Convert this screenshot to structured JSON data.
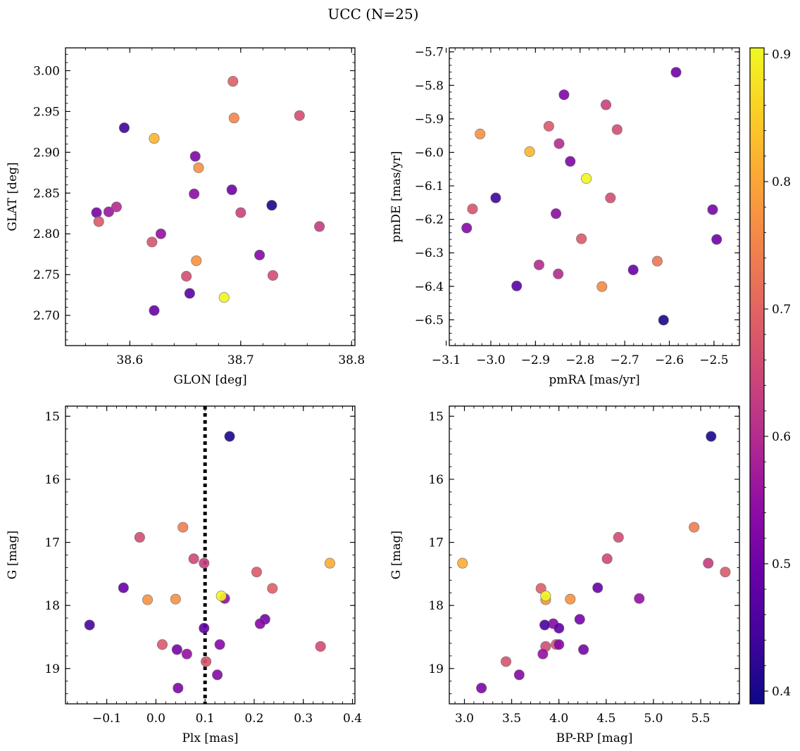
{
  "figure": {
    "suptitle": "UCC (N=25)",
    "colorbar": {
      "colormap": "plasma",
      "range": [
        0.39,
        0.905
      ],
      "ticks": [
        0.4,
        0.5,
        0.6,
        0.7,
        0.8,
        0.9
      ],
      "tick_labels": [
        "0.4",
        "0.5",
        "0.6",
        "0.7",
        "0.8",
        "0.9"
      ]
    }
  },
  "chart_data": [
    {
      "type": "scatter",
      "title": "",
      "xlabel": "GLON [deg]",
      "ylabel": "GLAT [deg]",
      "xlim": [
        38.542,
        38.803
      ],
      "ylim": [
        2.663,
        3.028
      ],
      "invert_y": false,
      "x_ticks": [
        38.6,
        38.7,
        38.8
      ],
      "x_tick_labels": [
        "38.6",
        "38.7",
        "38.8"
      ],
      "y_ticks": [
        2.7,
        2.75,
        2.8,
        2.85,
        2.9,
        2.95,
        3.0
      ],
      "y_tick_labels": [
        "2.70",
        "2.75",
        "2.80",
        "2.85",
        "2.90",
        "2.95",
        "3.00"
      ],
      "points": [
        {
          "x": 38.595,
          "y": 2.93,
          "c": 0.44
        },
        {
          "x": 38.622,
          "y": 2.917,
          "c": 0.82
        },
        {
          "x": 38.693,
          "y": 2.987,
          "c": 0.69
        },
        {
          "x": 38.694,
          "y": 2.942,
          "c": 0.75
        },
        {
          "x": 38.753,
          "y": 2.945,
          "c": 0.66
        },
        {
          "x": 38.659,
          "y": 2.895,
          "c": 0.52
        },
        {
          "x": 38.662,
          "y": 2.881,
          "c": 0.77
        },
        {
          "x": 38.658,
          "y": 2.849,
          "c": 0.54
        },
        {
          "x": 38.692,
          "y": 2.854,
          "c": 0.5
        },
        {
          "x": 38.728,
          "y": 2.835,
          "c": 0.4
        },
        {
          "x": 38.7,
          "y": 2.826,
          "c": 0.64
        },
        {
          "x": 38.57,
          "y": 2.826,
          "c": 0.51
        },
        {
          "x": 38.581,
          "y": 2.827,
          "c": 0.56
        },
        {
          "x": 38.588,
          "y": 2.833,
          "c": 0.6
        },
        {
          "x": 38.572,
          "y": 2.815,
          "c": 0.68
        },
        {
          "x": 38.628,
          "y": 2.8,
          "c": 0.55
        },
        {
          "x": 38.62,
          "y": 2.79,
          "c": 0.67
        },
        {
          "x": 38.771,
          "y": 2.809,
          "c": 0.63
        },
        {
          "x": 38.717,
          "y": 2.774,
          "c": 0.53
        },
        {
          "x": 38.66,
          "y": 2.767,
          "c": 0.77
        },
        {
          "x": 38.651,
          "y": 2.748,
          "c": 0.66
        },
        {
          "x": 38.729,
          "y": 2.749,
          "c": 0.66
        },
        {
          "x": 38.654,
          "y": 2.727,
          "c": 0.47
        },
        {
          "x": 38.685,
          "y": 2.722,
          "c": 0.9
        },
        {
          "x": 38.622,
          "y": 2.706,
          "c": 0.49
        }
      ]
    },
    {
      "type": "scatter",
      "title": "",
      "xlabel": "pmRA [mas/yr]",
      "ylabel": "pmDE [mas/yr]",
      "xlim": [
        -3.093,
        -2.443
      ],
      "ylim": [
        -6.577,
        -5.688
      ],
      "invert_y": false,
      "x_ticks": [
        -3.1,
        -3.0,
        -2.9,
        -2.8,
        -2.7,
        -2.6,
        -2.5
      ],
      "x_tick_labels": [
        "−3.1",
        "−3.0",
        "−2.9",
        "−2.8",
        "−2.7",
        "−2.6",
        "−2.5"
      ],
      "y_ticks": [
        -6.5,
        -6.4,
        -6.3,
        -6.2,
        -6.1,
        -6.0,
        -5.9,
        -5.8,
        -5.7
      ],
      "y_tick_labels": [
        "−6.5",
        "−6.4",
        "−6.3",
        "−6.2",
        "−6.1",
        "−6.0",
        "−5.9",
        "−5.8",
        "−5.7"
      ],
      "points": [
        {
          "x": -2.585,
          "y": -5.761,
          "c": 0.5
        },
        {
          "x": -2.836,
          "y": -5.828,
          "c": 0.52
        },
        {
          "x": -2.742,
          "y": -5.858,
          "c": 0.64
        },
        {
          "x": -2.87,
          "y": -5.922,
          "c": 0.68
        },
        {
          "x": -2.717,
          "y": -5.932,
          "c": 0.66
        },
        {
          "x": -3.024,
          "y": -5.945,
          "c": 0.77
        },
        {
          "x": -2.847,
          "y": -5.974,
          "c": 0.6
        },
        {
          "x": -2.913,
          "y": -5.998,
          "c": 0.82
        },
        {
          "x": -2.822,
          "y": -6.027,
          "c": 0.52
        },
        {
          "x": -2.786,
          "y": -6.078,
          "c": 0.9
        },
        {
          "x": -2.989,
          "y": -6.136,
          "c": 0.44
        },
        {
          "x": -2.732,
          "y": -6.136,
          "c": 0.66
        },
        {
          "x": -3.041,
          "y": -6.169,
          "c": 0.67
        },
        {
          "x": -2.503,
          "y": -6.171,
          "c": 0.51
        },
        {
          "x": -2.854,
          "y": -6.183,
          "c": 0.54
        },
        {
          "x": -3.054,
          "y": -6.226,
          "c": 0.53
        },
        {
          "x": -2.797,
          "y": -6.258,
          "c": 0.68
        },
        {
          "x": -2.494,
          "y": -6.26,
          "c": 0.5
        },
        {
          "x": -2.627,
          "y": -6.325,
          "c": 0.73
        },
        {
          "x": -2.892,
          "y": -6.336,
          "c": 0.6
        },
        {
          "x": -2.681,
          "y": -6.351,
          "c": 0.49
        },
        {
          "x": -2.849,
          "y": -6.363,
          "c": 0.6
        },
        {
          "x": -2.751,
          "y": -6.401,
          "c": 0.76
        },
        {
          "x": -2.942,
          "y": -6.399,
          "c": 0.47
        },
        {
          "x": -2.613,
          "y": -6.501,
          "c": 0.4
        }
      ]
    },
    {
      "type": "scatter",
      "title": "",
      "xlabel": "Plx [mas]",
      "ylabel": "G [mag]",
      "xlim": [
        -0.184,
        0.405
      ],
      "ylim": [
        14.84,
        19.56
      ],
      "invert_y": true,
      "vline": {
        "x": 0.1,
        "style": "dotted",
        "color": "#000000"
      },
      "x_ticks": [
        -0.1,
        0.0,
        0.1,
        0.2,
        0.3,
        0.4
      ],
      "x_tick_labels": [
        "−0.1",
        "0.0",
        "0.1",
        "0.2",
        "0.3",
        "0.4"
      ],
      "y_ticks": [
        15,
        16,
        17,
        18,
        19
      ],
      "y_tick_labels": [
        "15",
        "16",
        "17",
        "18",
        "19"
      ],
      "points": [
        {
          "x": 0.15,
          "y": 15.32,
          "c": 0.4
        },
        {
          "x": 0.055,
          "y": 16.76,
          "c": 0.74
        },
        {
          "x": -0.033,
          "y": 16.92,
          "c": 0.66
        },
        {
          "x": 0.077,
          "y": 17.26,
          "c": 0.65
        },
        {
          "x": 0.098,
          "y": 17.33,
          "c": 0.63
        },
        {
          "x": 0.354,
          "y": 17.33,
          "c": 0.81
        },
        {
          "x": 0.205,
          "y": 17.47,
          "c": 0.68
        },
        {
          "x": -0.066,
          "y": 17.72,
          "c": 0.49
        },
        {
          "x": 0.237,
          "y": 17.73,
          "c": 0.69
        },
        {
          "x": 0.14,
          "y": 17.89,
          "c": 0.55
        },
        {
          "x": 0.133,
          "y": 17.85,
          "c": 0.9
        },
        {
          "x": -0.017,
          "y": 17.91,
          "c": 0.77
        },
        {
          "x": 0.04,
          "y": 17.9,
          "c": 0.77
        },
        {
          "x": 0.222,
          "y": 18.22,
          "c": 0.51
        },
        {
          "x": 0.212,
          "y": 18.29,
          "c": 0.53
        },
        {
          "x": -0.135,
          "y": 18.31,
          "c": 0.45
        },
        {
          "x": 0.098,
          "y": 18.36,
          "c": 0.48
        },
        {
          "x": 0.013,
          "y": 18.62,
          "c": 0.68
        },
        {
          "x": 0.13,
          "y": 18.62,
          "c": 0.53
        },
        {
          "x": 0.335,
          "y": 18.65,
          "c": 0.66
        },
        {
          "x": 0.043,
          "y": 18.7,
          "c": 0.51
        },
        {
          "x": 0.063,
          "y": 18.77,
          "c": 0.55
        },
        {
          "x": 0.102,
          "y": 18.89,
          "c": 0.67
        },
        {
          "x": 0.125,
          "y": 19.1,
          "c": 0.53
        },
        {
          "x": 0.045,
          "y": 19.31,
          "c": 0.52
        }
      ]
    },
    {
      "type": "scatter",
      "title": "",
      "xlabel": "BP-RP [mag]",
      "ylabel": "G [mag]",
      "xlim": [
        2.84,
        5.91
      ],
      "ylim": [
        14.84,
        19.56
      ],
      "invert_y": true,
      "x_ticks": [
        3.0,
        3.5,
        4.0,
        4.5,
        5.0,
        5.5
      ],
      "x_tick_labels": [
        "3.0",
        "3.5",
        "4.0",
        "4.5",
        "5.0",
        "5.5"
      ],
      "y_ticks": [
        15,
        16,
        17,
        18,
        19
      ],
      "y_tick_labels": [
        "15",
        "16",
        "17",
        "18",
        "19"
      ],
      "points": [
        {
          "x": 5.61,
          "y": 15.32,
          "c": 0.4
        },
        {
          "x": 5.43,
          "y": 16.76,
          "c": 0.74
        },
        {
          "x": 4.63,
          "y": 16.92,
          "c": 0.66
        },
        {
          "x": 4.51,
          "y": 17.26,
          "c": 0.65
        },
        {
          "x": 5.58,
          "y": 17.33,
          "c": 0.63
        },
        {
          "x": 2.98,
          "y": 17.33,
          "c": 0.81
        },
        {
          "x": 5.76,
          "y": 17.47,
          "c": 0.68
        },
        {
          "x": 4.41,
          "y": 17.72,
          "c": 0.49
        },
        {
          "x": 3.81,
          "y": 17.73,
          "c": 0.69
        },
        {
          "x": 4.85,
          "y": 17.89,
          "c": 0.55
        },
        {
          "x": 3.86,
          "y": 17.91,
          "c": 0.77
        },
        {
          "x": 3.86,
          "y": 17.85,
          "c": 0.9
        },
        {
          "x": 4.12,
          "y": 17.9,
          "c": 0.77
        },
        {
          "x": 4.22,
          "y": 18.22,
          "c": 0.51
        },
        {
          "x": 3.94,
          "y": 18.29,
          "c": 0.53
        },
        {
          "x": 3.85,
          "y": 18.31,
          "c": 0.45
        },
        {
          "x": 4.0,
          "y": 18.36,
          "c": 0.48
        },
        {
          "x": 3.97,
          "y": 18.62,
          "c": 0.68
        },
        {
          "x": 4.0,
          "y": 18.62,
          "c": 0.53
        },
        {
          "x": 3.86,
          "y": 18.65,
          "c": 0.66
        },
        {
          "x": 4.26,
          "y": 18.7,
          "c": 0.51
        },
        {
          "x": 3.83,
          "y": 18.77,
          "c": 0.55
        },
        {
          "x": 3.44,
          "y": 18.89,
          "c": 0.67
        },
        {
          "x": 3.58,
          "y": 19.1,
          "c": 0.53
        },
        {
          "x": 3.18,
          "y": 19.31,
          "c": 0.52
        }
      ]
    }
  ]
}
